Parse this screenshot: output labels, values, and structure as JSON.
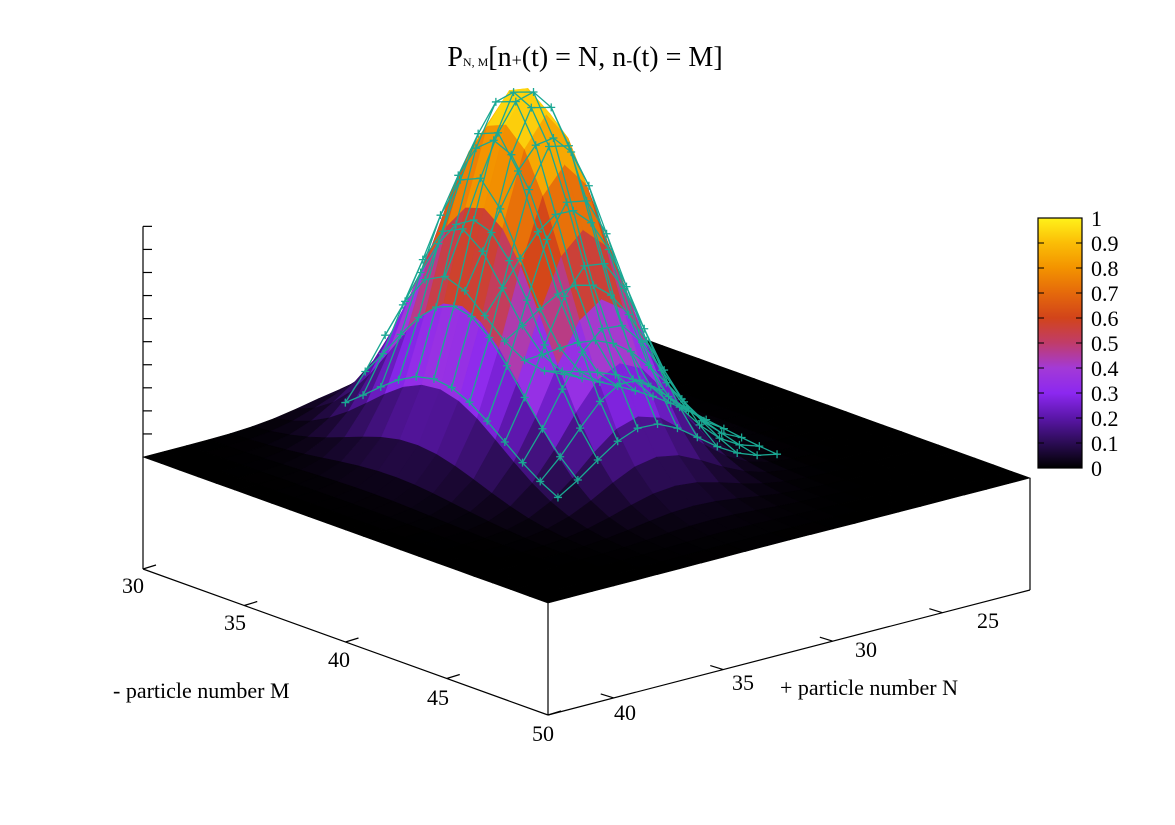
{
  "chart_data": {
    "type": "surface",
    "title": "P_{N,M}[n+(t) = N, n-(t) = M]",
    "title_parts": {
      "main": "P",
      "subscript": "N, M",
      "body_1": "[n",
      "sub_plus": "+",
      "body_2": "(t) = N, n",
      "sub_minus": "-",
      "body_3": "(t) = M]"
    },
    "xlabel": "+ particle number N",
    "ylabel": "- particle number M",
    "x_ticks": [
      "25",
      "30",
      "35",
      "40"
    ],
    "y_ticks": [
      "30",
      "35",
      "40",
      "45",
      "50"
    ],
    "xlim": [
      21,
      43
    ],
    "ylim": [
      30,
      50
    ],
    "zlim": [
      0,
      1
    ],
    "peak": {
      "N": 33,
      "M": 38,
      "value": 1.0
    },
    "colorbar": {
      "ticks": [
        "0",
        "0.1",
        "0.2",
        "0.3",
        "0.4",
        "0.5",
        "0.6",
        "0.7",
        "0.8",
        "0.9",
        "1"
      ],
      "range": [
        0,
        1
      ],
      "palette": [
        "#000000",
        "#2b0c54",
        "#5a16a8",
        "#8c28f0",
        "#a33ad6",
        "#c03c6a",
        "#d2441a",
        "#e5690b",
        "#f39300",
        "#fbbd06",
        "#fff21a"
      ]
    },
    "series": [
      {
        "style": "colored surface"
      },
      {
        "style": "wireframe with + markers",
        "color": "#1aa893"
      }
    ]
  }
}
